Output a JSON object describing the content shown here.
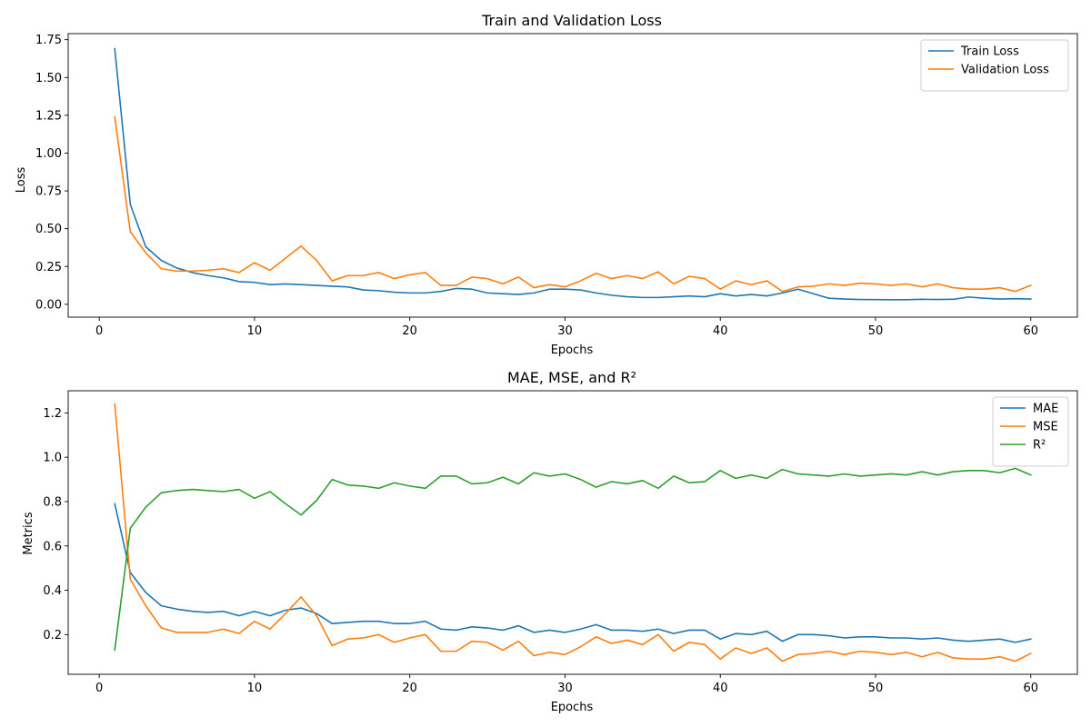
{
  "chart_data": [
    {
      "type": "line",
      "title": "Train and Validation Loss",
      "xlabel": "Epochs",
      "ylabel": "Loss",
      "xlim": [
        -2,
        63
      ],
      "ylim": [
        -0.085,
        1.79
      ],
      "xticks": [
        0,
        10,
        20,
        30,
        40,
        50,
        60
      ],
      "yticks": [
        0.0,
        0.25,
        0.5,
        0.75,
        1.0,
        1.25,
        1.5,
        1.75
      ],
      "ytick_labels": [
        "0.00",
        "0.25",
        "0.50",
        "0.75",
        "1.00",
        "1.25",
        "1.50",
        "1.75"
      ],
      "xtick_labels": [
        "0",
        "10",
        "20",
        "30",
        "40",
        "50",
        "60"
      ],
      "grid": false,
      "legend": "top-right",
      "x": [
        1,
        2,
        3,
        4,
        5,
        6,
        7,
        8,
        9,
        10,
        11,
        12,
        13,
        14,
        15,
        16,
        17,
        18,
        19,
        20,
        21,
        22,
        23,
        24,
        25,
        26,
        27,
        28,
        29,
        30,
        31,
        32,
        33,
        34,
        35,
        36,
        37,
        38,
        39,
        40,
        41,
        42,
        43,
        44,
        45,
        46,
        47,
        48,
        49,
        50,
        51,
        52,
        53,
        54,
        55,
        56,
        57,
        58,
        59,
        60
      ],
      "series": [
        {
          "name": "Train Loss",
          "color": "#1f77b4",
          "values": [
            1.69,
            0.66,
            0.38,
            0.29,
            0.24,
            0.21,
            0.19,
            0.175,
            0.15,
            0.145,
            0.13,
            0.135,
            0.13,
            0.125,
            0.12,
            0.115,
            0.095,
            0.09,
            0.08,
            0.075,
            0.075,
            0.085,
            0.105,
            0.1,
            0.075,
            0.07,
            0.065,
            0.075,
            0.1,
            0.1,
            0.095,
            0.075,
            0.06,
            0.05,
            0.045,
            0.045,
            0.05,
            0.055,
            0.05,
            0.07,
            0.055,
            0.065,
            0.055,
            0.075,
            0.1,
            0.07,
            0.04,
            0.035,
            0.032,
            0.031,
            0.03,
            0.03,
            0.033,
            0.032,
            0.033,
            0.048,
            0.04,
            0.035,
            0.037,
            0.035
          ]
        },
        {
          "name": "Validation Loss",
          "color": "#ff7f0e",
          "values": [
            1.24,
            0.48,
            0.34,
            0.235,
            0.22,
            0.22,
            0.225,
            0.235,
            0.21,
            0.275,
            0.225,
            0.305,
            0.385,
            0.29,
            0.155,
            0.19,
            0.19,
            0.21,
            0.17,
            0.195,
            0.21,
            0.125,
            0.125,
            0.18,
            0.17,
            0.135,
            0.18,
            0.11,
            0.13,
            0.115,
            0.155,
            0.205,
            0.17,
            0.19,
            0.17,
            0.215,
            0.135,
            0.185,
            0.17,
            0.1,
            0.155,
            0.13,
            0.155,
            0.085,
            0.115,
            0.12,
            0.135,
            0.125,
            0.14,
            0.135,
            0.125,
            0.135,
            0.115,
            0.135,
            0.11,
            0.1,
            0.1,
            0.11,
            0.085,
            0.125
          ]
        }
      ]
    },
    {
      "type": "line",
      "title": "MAE, MSE, and R²",
      "xlabel": "Epochs",
      "ylabel": "Metrics",
      "xlim": [
        -2,
        63
      ],
      "ylim": [
        0.021,
        1.3
      ],
      "xticks": [
        0,
        10,
        20,
        30,
        40,
        50,
        60
      ],
      "yticks": [
        0.2,
        0.4,
        0.6,
        0.8,
        1.0,
        1.2
      ],
      "ytick_labels": [
        "0.2",
        "0.4",
        "0.6",
        "0.8",
        "1.0",
        "1.2"
      ],
      "xtick_labels": [
        "0",
        "10",
        "20",
        "30",
        "40",
        "50",
        "60"
      ],
      "grid": false,
      "legend": "top-right",
      "x": [
        1,
        2,
        3,
        4,
        5,
        6,
        7,
        8,
        9,
        10,
        11,
        12,
        13,
        14,
        15,
        16,
        17,
        18,
        19,
        20,
        21,
        22,
        23,
        24,
        25,
        26,
        27,
        28,
        29,
        30,
        31,
        32,
        33,
        34,
        35,
        36,
        37,
        38,
        39,
        40,
        41,
        42,
        43,
        44,
        45,
        46,
        47,
        48,
        49,
        50,
        51,
        52,
        53,
        54,
        55,
        56,
        57,
        58,
        59,
        60
      ],
      "series": [
        {
          "name": "MAE",
          "color": "#1f77b4",
          "values": [
            0.79,
            0.48,
            0.39,
            0.33,
            0.315,
            0.305,
            0.3,
            0.305,
            0.285,
            0.305,
            0.285,
            0.31,
            0.32,
            0.295,
            0.25,
            0.255,
            0.26,
            0.26,
            0.25,
            0.25,
            0.26,
            0.225,
            0.22,
            0.235,
            0.23,
            0.22,
            0.24,
            0.21,
            0.22,
            0.21,
            0.225,
            0.245,
            0.22,
            0.22,
            0.215,
            0.225,
            0.205,
            0.22,
            0.22,
            0.18,
            0.205,
            0.2,
            0.215,
            0.17,
            0.2,
            0.2,
            0.195,
            0.185,
            0.19,
            0.19,
            0.185,
            0.185,
            0.18,
            0.185,
            0.175,
            0.17,
            0.175,
            0.18,
            0.165,
            0.18
          ]
        },
        {
          "name": "MSE",
          "color": "#ff7f0e",
          "values": [
            1.24,
            0.45,
            0.33,
            0.23,
            0.21,
            0.21,
            0.21,
            0.225,
            0.205,
            0.26,
            0.225,
            0.295,
            0.37,
            0.285,
            0.15,
            0.18,
            0.185,
            0.2,
            0.165,
            0.185,
            0.2,
            0.125,
            0.125,
            0.17,
            0.165,
            0.13,
            0.17,
            0.105,
            0.12,
            0.11,
            0.145,
            0.19,
            0.16,
            0.175,
            0.155,
            0.2,
            0.125,
            0.165,
            0.155,
            0.09,
            0.14,
            0.115,
            0.14,
            0.08,
            0.11,
            0.115,
            0.125,
            0.11,
            0.125,
            0.12,
            0.11,
            0.12,
            0.1,
            0.12,
            0.095,
            0.09,
            0.09,
            0.1,
            0.08,
            0.115
          ]
        },
        {
          "name": "R²",
          "color": "#2ca02c",
          "values": [
            0.13,
            0.68,
            0.775,
            0.84,
            0.85,
            0.855,
            0.85,
            0.845,
            0.855,
            0.815,
            0.845,
            0.79,
            0.74,
            0.805,
            0.9,
            0.875,
            0.87,
            0.86,
            0.885,
            0.87,
            0.86,
            0.915,
            0.915,
            0.88,
            0.885,
            0.91,
            0.88,
            0.93,
            0.915,
            0.925,
            0.9,
            0.865,
            0.89,
            0.88,
            0.895,
            0.86,
            0.915,
            0.885,
            0.89,
            0.94,
            0.905,
            0.92,
            0.905,
            0.945,
            0.925,
            0.92,
            0.915,
            0.925,
            0.915,
            0.92,
            0.925,
            0.92,
            0.935,
            0.92,
            0.935,
            0.94,
            0.94,
            0.93,
            0.95,
            0.92
          ]
        }
      ]
    }
  ]
}
